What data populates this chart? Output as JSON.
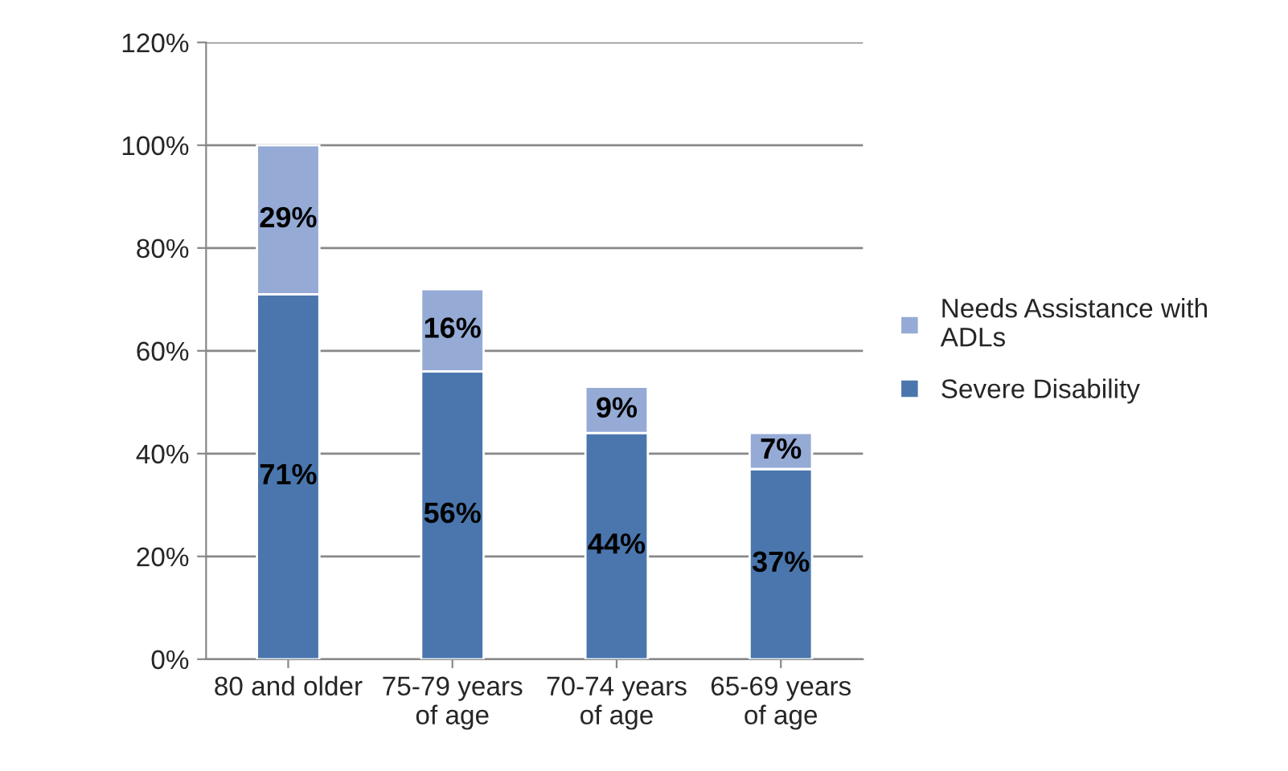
{
  "chart_data": {
    "type": "bar",
    "stacked": true,
    "categories": [
      "80 and older",
      "75-79 years\nof age",
      "70-74 years\nof age",
      "65-69 years\nof age"
    ],
    "series": [
      {
        "name": "Severe Disability",
        "color": "#4a76ad",
        "values": [
          71,
          56,
          44,
          37
        ],
        "value_labels": [
          "71%",
          "56%",
          "44%",
          "37%"
        ]
      },
      {
        "name": "Needs Assistance with\nADLs",
        "color": "#95abd6",
        "values": [
          29,
          16,
          9,
          7
        ],
        "value_labels": [
          "29%",
          "16%",
          "9%",
          "7%"
        ]
      }
    ],
    "ylim": [
      0,
      120
    ],
    "yticks": [
      {
        "value": 0,
        "label": "0%"
      },
      {
        "value": 20,
        "label": "20%"
      },
      {
        "value": 40,
        "label": "40%"
      },
      {
        "value": 60,
        "label": "60%"
      },
      {
        "value": 80,
        "label": "80%"
      },
      {
        "value": 100,
        "label": "100%"
      },
      {
        "value": 120,
        "label": "120%"
      }
    ],
    "grid": "y",
    "legend": "right"
  }
}
